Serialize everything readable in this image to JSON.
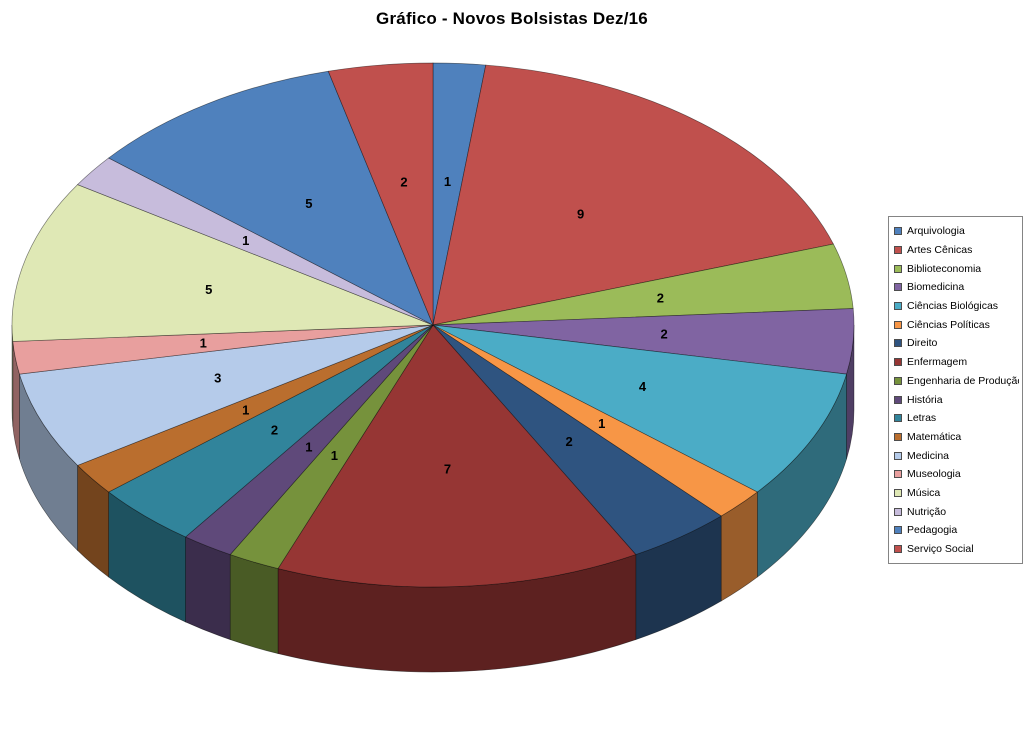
{
  "chart_data": {
    "type": "pie",
    "style": "3d",
    "title": "Gráfico - Novos Bolsistas Dez/16",
    "legend_position": "right",
    "data_labels": "value",
    "start_angle_deg": -90,
    "direction": "clockwise",
    "categories": [
      "Arquivologia",
      "Artes Cênicas",
      "Biblioteconomia",
      "Biomedicina",
      "Ciências Biológicas",
      "Ciências Políticas",
      "Direito",
      "Enfermagem",
      "Engenharia de Produção",
      "História",
      "Letras",
      "Matemática",
      "Medicina",
      "Museologia",
      "Música",
      "Nutrição",
      "Pedagogia",
      "Serviço Social"
    ],
    "values": [
      1,
      9,
      2,
      2,
      4,
      1,
      2,
      7,
      1,
      1,
      2,
      1,
      3,
      1,
      5,
      1,
      5,
      2
    ],
    "colors": [
      "#4F81BD",
      "#C0504D",
      "#9BBB59",
      "#8064A2",
      "#4BACC6",
      "#F79646",
      "#2F5480",
      "#963634",
      "#76923C",
      "#5F497A",
      "#31849B",
      "#BA6E2E",
      "#B5CBEA",
      "#E89F9E",
      "#DFE8B5",
      "#C7BCDC",
      "#4F81BD",
      "#C0504D"
    ],
    "label_color": "#000000",
    "background": "#FFFFFF",
    "legend_border": "#848484"
  }
}
